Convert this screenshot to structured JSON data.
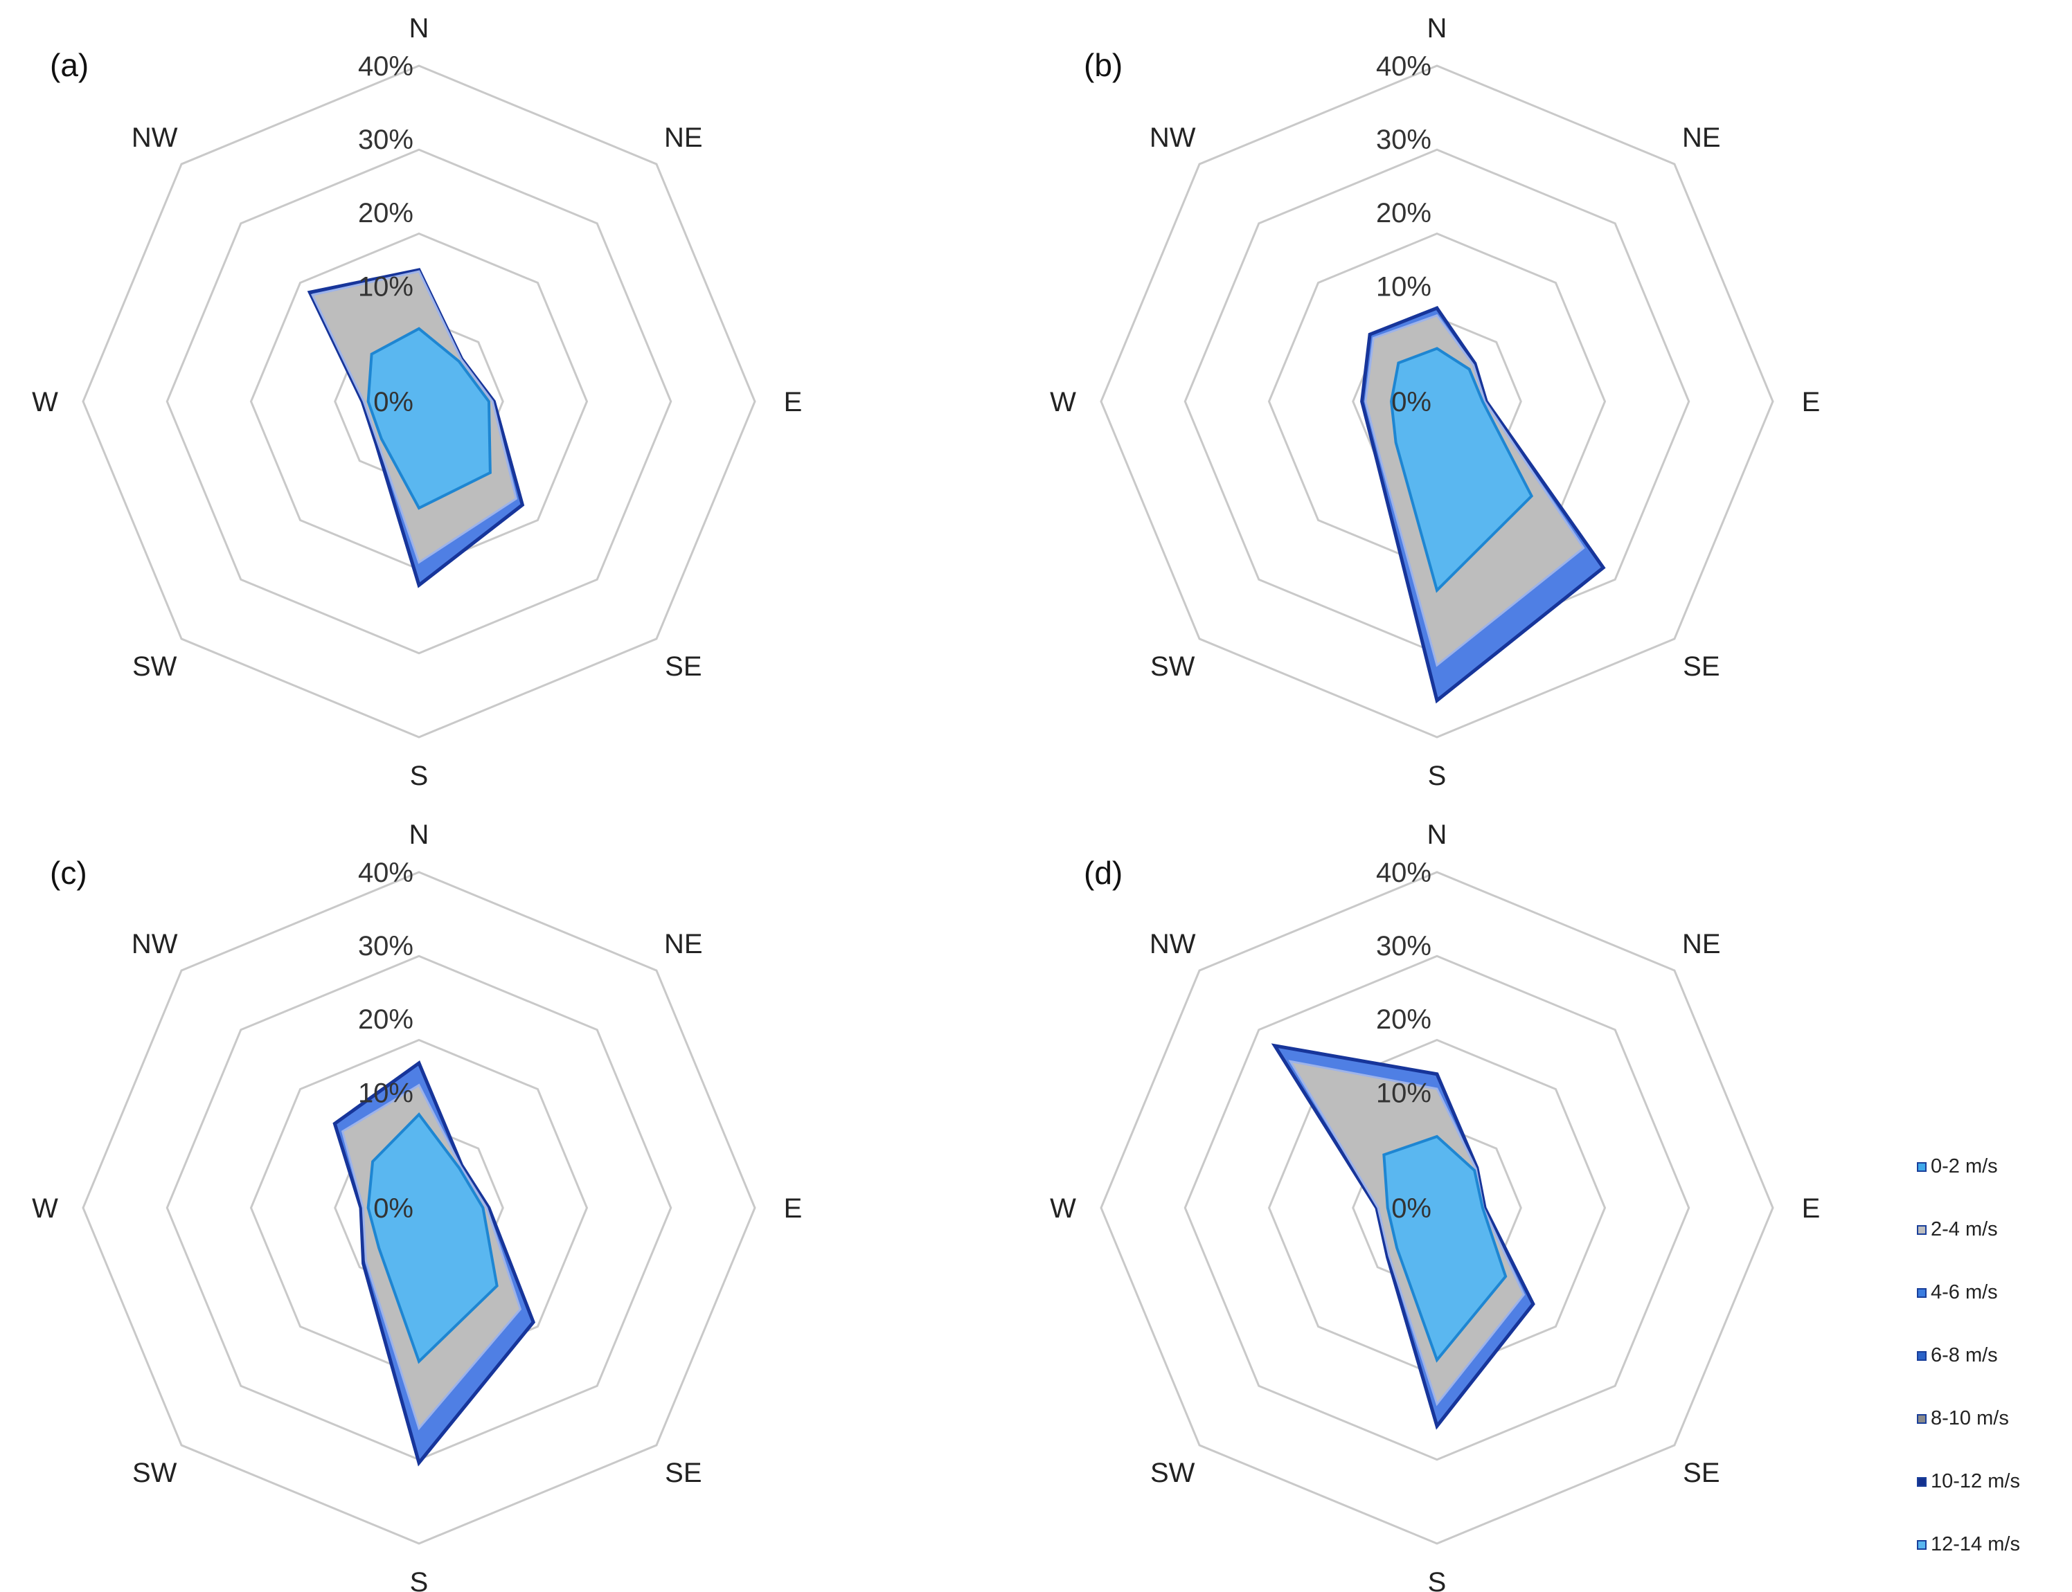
{
  "chart_data": [
    {
      "panel_label": "(a)",
      "type": "radar",
      "directions": [
        "N",
        "NE",
        "E",
        "SE",
        "S",
        "SW",
        "W",
        "NW"
      ],
      "radial_ticks": [
        "0%",
        "10%",
        "20%",
        "30%",
        "40%"
      ],
      "rmax": 40,
      "series": [
        {
          "name": "12-14 m/s",
          "values": [
            12.2,
            2.5,
            4.5,
            14.2,
            19.3,
            2.5,
            2.0,
            15.3
          ]
        },
        {
          "name": "2-4 m/s",
          "values": [
            12.0,
            2.4,
            4.3,
            13.0,
            16.2,
            2.2,
            1.8,
            14.8
          ]
        },
        {
          "name": "0-2 m/s",
          "values": [
            4.2,
            2.0,
            3.8,
            8.0,
            8.8,
            1.5,
            1.2,
            3.4
          ]
        }
      ]
    },
    {
      "panel_label": "(b)",
      "type": "radar",
      "directions": [
        "N",
        "NE",
        "E",
        "SE",
        "S",
        "SW",
        "W",
        "NW"
      ],
      "radial_ticks": [
        "0%",
        "10%",
        "20%",
        "30%",
        "40%"
      ],
      "rmax": 40,
      "series": [
        {
          "name": "12-14 m/s",
          "values": [
            7.0,
            1.6,
            1.0,
            26.3,
            35.0,
            5.8,
            4.5,
            7.2
          ]
        },
        {
          "name": "2-4 m/s",
          "values": [
            6.0,
            1.3,
            0.8,
            22.5,
            30.2,
            5.2,
            4.0,
            6.5
          ]
        },
        {
          "name": "0-2 m/s",
          "values": [
            1.5,
            0.5,
            0.5,
            12.5,
            20.0,
            2.2,
            0.5,
            1.7
          ]
        }
      ]
    },
    {
      "panel_label": "(c)",
      "type": "radar",
      "directions": [
        "N",
        "NE",
        "E",
        "SE",
        "S",
        "SW",
        "W",
        "NW"
      ],
      "radial_ticks": [
        "0%",
        "10%",
        "20%",
        "30%",
        "40%"
      ],
      "rmax": 40,
      "series": [
        {
          "name": "12-14 m/s",
          "values": [
            14.0,
            2.5,
            3.8,
            16.3,
            29.0,
            5.0,
            2.2,
            10.5
          ]
        },
        {
          "name": "2-4 m/s",
          "values": [
            11.0,
            2.3,
            3.5,
            13.8,
            24.3,
            4.5,
            1.9,
            9.0
          ]
        },
        {
          "name": "0-2 m/s",
          "values": [
            7.0,
            2.0,
            3.0,
            9.3,
            15.2,
            2.0,
            1.2,
            3.2
          ]
        }
      ]
    },
    {
      "panel_label": "(d)",
      "type": "radar",
      "directions": [
        "N",
        "NE",
        "E",
        "SE",
        "S",
        "SW",
        "W",
        "NW"
      ],
      "radial_ticks": [
        "0%",
        "10%",
        "20%",
        "30%",
        "40%"
      ],
      "rmax": 40,
      "series": [
        {
          "name": "12-14 m/s",
          "values": [
            12.5,
            2.0,
            0.8,
            12.8,
            24.0,
            3.8,
            2.5,
            25.5
          ]
        },
        {
          "name": "2-4 m/s",
          "values": [
            10.5,
            1.8,
            0.6,
            11.0,
            21.0,
            3.5,
            2.3,
            22.5
          ]
        },
        {
          "name": "0-2 m/s",
          "values": [
            4.0,
            1.5,
            0.5,
            7.5,
            15.0,
            2.0,
            1.0,
            4.5
          ]
        }
      ]
    }
  ],
  "legend": {
    "items": [
      {
        "label": "0-2 m/s",
        "color": "#3fa9ea"
      },
      {
        "label": "2-4 m/s",
        "color": "#bdbdbd"
      },
      {
        "label": "4-6 m/s",
        "color": "#3b7de0"
      },
      {
        "label": "6-8 m/s",
        "color": "#2b63c8"
      },
      {
        "label": "8-10 m/s",
        "color": "#8a8a8a"
      },
      {
        "label": "10-12 m/s",
        "color": "#14318f"
      },
      {
        "label": "12-14 m/s",
        "color": "#5ab7f0"
      }
    ]
  },
  "colors": {
    "grid": "#c9c9c9",
    "fill_outer": "#4f7fe4",
    "stroke_outer": "#17359a",
    "fill_mid": "#bdbdbd",
    "stroke_mid": "#9db3ea",
    "fill_inner": "#5ab7f0",
    "stroke_inner": "#1e86d2"
  }
}
